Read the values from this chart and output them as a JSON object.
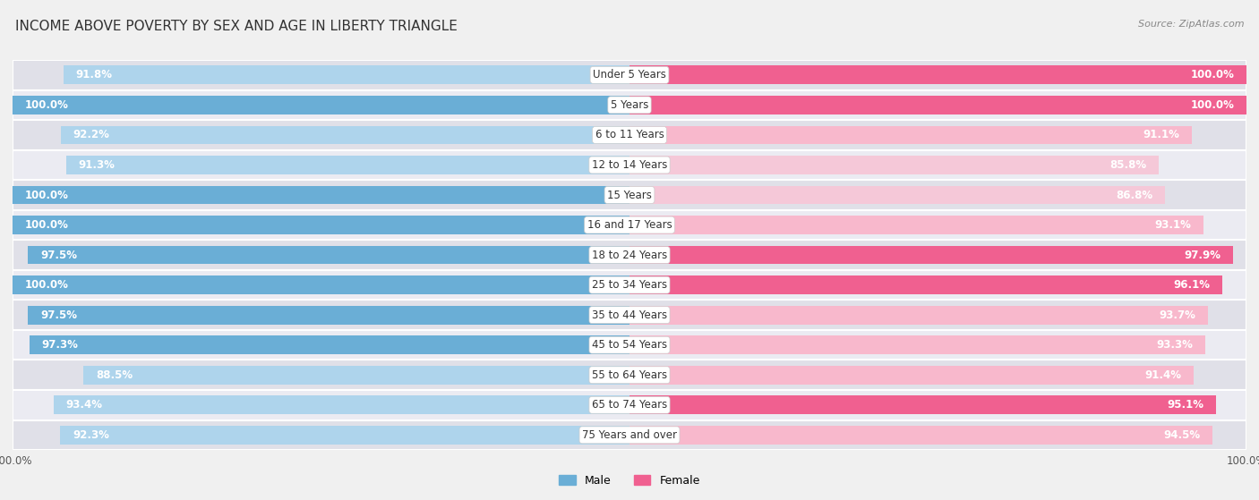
{
  "title": "INCOME ABOVE POVERTY BY SEX AND AGE IN LIBERTY TRIANGLE",
  "source": "Source: ZipAtlas.com",
  "categories": [
    "Under 5 Years",
    "5 Years",
    "6 to 11 Years",
    "12 to 14 Years",
    "15 Years",
    "16 and 17 Years",
    "18 to 24 Years",
    "25 to 34 Years",
    "35 to 44 Years",
    "45 to 54 Years",
    "55 to 64 Years",
    "65 to 74 Years",
    "75 Years and over"
  ],
  "male_values": [
    91.8,
    100.0,
    92.2,
    91.3,
    100.0,
    100.0,
    97.5,
    100.0,
    97.5,
    97.3,
    88.5,
    93.4,
    92.3
  ],
  "female_values": [
    100.0,
    100.0,
    91.1,
    85.8,
    86.8,
    93.1,
    97.9,
    96.1,
    93.7,
    93.3,
    91.4,
    95.1,
    94.5
  ],
  "male_color_dark": "#6aaed6",
  "male_color_light": "#aed4ec",
  "female_color_dark": "#f06090",
  "female_color_light": "#f8b8cc",
  "male_label": "Male",
  "female_label": "Female",
  "bg_color": "#f0f0f0",
  "row_color_dark": "#e0e0e8",
  "row_color_light": "#ebebf2",
  "title_fontsize": 11,
  "label_fontsize": 8.5,
  "value_fontsize": 8.5,
  "legend_fontsize": 9,
  "axis_label_fontsize": 8.5
}
